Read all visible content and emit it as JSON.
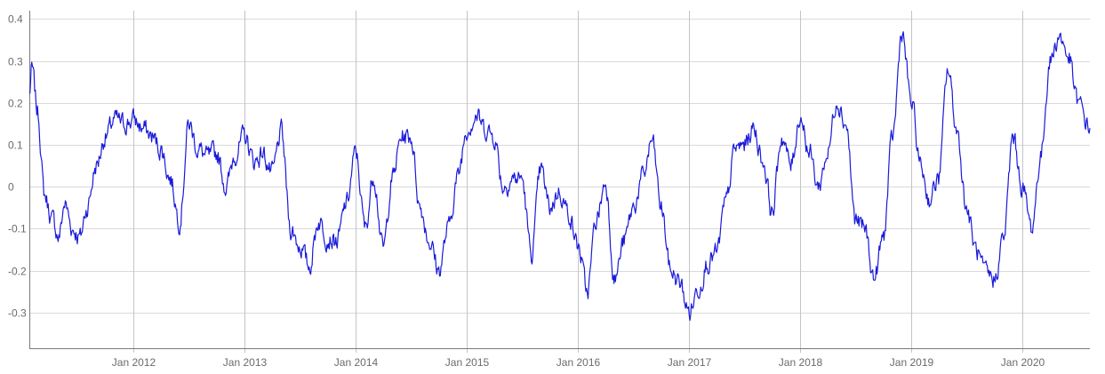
{
  "chart_data": {
    "type": "line",
    "title": "",
    "xlabel": "",
    "ylabel": "",
    "x_range": [
      "2011-01-24",
      "2020-08-10"
    ],
    "ylim": [
      -0.385,
      0.42
    ],
    "y_ticks": [
      {
        "value": 0.4,
        "label": "0.4"
      },
      {
        "value": 0.3,
        "label": "0.3"
      },
      {
        "value": 0.2,
        "label": "0.2"
      },
      {
        "value": 0.1,
        "label": "0.1"
      },
      {
        "value": 0,
        "label": "0"
      },
      {
        "value": -0.1,
        "label": "-0.1"
      },
      {
        "value": -0.2,
        "label": "-0.2"
      },
      {
        "value": -0.3,
        "label": "-0.3"
      }
    ],
    "x_ticks": [
      {
        "value": "2012-01-01",
        "label": "Jan 2012"
      },
      {
        "value": "2013-01-01",
        "label": "Jan 2013"
      },
      {
        "value": "2014-01-01",
        "label": "Jan 2014"
      },
      {
        "value": "2015-01-01",
        "label": "Jan 2015"
      },
      {
        "value": "2016-01-01",
        "label": "Jan 2016"
      },
      {
        "value": "2017-01-01",
        "label": "Jan 2017"
      },
      {
        "value": "2018-01-01",
        "label": "Jan 2018"
      },
      {
        "value": "2019-01-01",
        "label": "Jan 2019"
      },
      {
        "value": "2020-01-01",
        "label": "Jan 2020"
      }
    ],
    "grid": true,
    "legend": "none",
    "series": [
      {
        "color": "#1a1adb",
        "x": [
          "2011-01-24",
          "2011-02-01",
          "2011-02-20",
          "2011-03-15",
          "2011-04-10",
          "2011-05-01",
          "2011-05-20",
          "2011-06-15",
          "2011-07-10",
          "2011-08-01",
          "2011-09-01",
          "2011-10-01",
          "2011-11-01",
          "2011-12-01",
          "2012-01-01",
          "2012-02-01",
          "2012-03-01",
          "2012-04-01",
          "2012-05-01",
          "2012-06-01",
          "2012-07-01",
          "2012-08-01",
          "2012-09-01",
          "2012-10-01",
          "2012-11-01",
          "2012-12-01",
          "2013-01-01",
          "2013-02-01",
          "2013-03-01",
          "2013-04-01",
          "2013-05-01",
          "2013-06-01",
          "2013-07-01",
          "2013-08-01",
          "2013-09-01",
          "2013-10-01",
          "2013-11-01",
          "2013-12-01",
          "2014-01-01",
          "2014-02-01",
          "2014-03-01",
          "2014-04-01",
          "2014-05-01",
          "2014-06-01",
          "2014-07-01",
          "2014-08-01",
          "2014-09-01",
          "2014-10-01",
          "2014-11-01",
          "2014-12-01",
          "2015-01-01",
          "2015-02-01",
          "2015-03-01",
          "2015-04-01",
          "2015-05-01",
          "2015-06-01",
          "2015-07-01",
          "2015-08-01",
          "2015-09-01",
          "2015-10-01",
          "2015-11-01",
          "2015-12-01",
          "2016-01-01",
          "2016-02-01",
          "2016-03-01",
          "2016-04-01",
          "2016-05-01",
          "2016-06-01",
          "2016-07-01",
          "2016-08-01",
          "2016-09-01",
          "2016-10-01",
          "2016-11-01",
          "2016-12-01",
          "2017-01-01",
          "2017-02-01",
          "2017-03-01",
          "2017-04-01",
          "2017-05-01",
          "2017-06-01",
          "2017-07-01",
          "2017-08-01",
          "2017-09-01",
          "2017-10-01",
          "2017-11-01",
          "2017-12-01",
          "2018-01-01",
          "2018-02-01",
          "2018-03-01",
          "2018-04-01",
          "2018-05-01",
          "2018-06-01",
          "2018-07-01",
          "2018-08-01",
          "2018-09-01",
          "2018-10-01",
          "2018-11-01",
          "2018-12-01",
          "2019-01-01",
          "2019-02-01",
          "2019-03-01",
          "2019-04-01",
          "2019-05-01",
          "2019-06-01",
          "2019-07-01",
          "2019-08-01",
          "2019-09-01",
          "2019-10-01",
          "2019-11-01",
          "2019-12-01",
          "2020-01-01",
          "2020-02-01",
          "2020-03-01",
          "2020-04-01",
          "2020-05-01",
          "2020-06-01",
          "2020-07-01",
          "2020-08-10"
        ],
        "values": [
          0.22,
          0.28,
          0.18,
          -0.02,
          -0.08,
          -0.12,
          -0.04,
          -0.1,
          -0.12,
          -0.05,
          0.05,
          0.12,
          0.16,
          0.15,
          0.16,
          0.14,
          0.12,
          0.09,
          0.02,
          -0.08,
          0.15,
          0.09,
          0.07,
          0.08,
          0.0,
          0.08,
          0.12,
          0.06,
          0.08,
          0.03,
          0.13,
          -0.1,
          -0.14,
          -0.19,
          -0.08,
          -0.12,
          -0.13,
          -0.04,
          0.08,
          -0.1,
          0.03,
          -0.15,
          0.02,
          0.12,
          0.12,
          -0.05,
          -0.13,
          -0.2,
          -0.1,
          0.02,
          0.14,
          0.17,
          0.14,
          0.12,
          0.0,
          0.02,
          0.02,
          -0.16,
          0.04,
          -0.05,
          -0.01,
          -0.06,
          -0.14,
          -0.25,
          -0.08,
          0.01,
          -0.22,
          -0.13,
          -0.05,
          0.02,
          0.11,
          -0.05,
          -0.2,
          -0.23,
          -0.3,
          -0.24,
          -0.18,
          -0.16,
          -0.04,
          0.09,
          0.1,
          0.14,
          0.06,
          -0.06,
          0.12,
          0.05,
          0.17,
          0.08,
          0.0,
          0.08,
          0.21,
          0.15,
          -0.08,
          -0.1,
          -0.22,
          -0.12,
          0.12,
          0.37,
          0.2,
          0.05,
          -0.03,
          0.02,
          0.28,
          0.13,
          -0.05,
          -0.15,
          -0.21,
          -0.22,
          -0.12,
          0.12,
          0.0,
          -0.1,
          0.07,
          0.3,
          0.36,
          0.31,
          0.2,
          0.14
        ]
      }
    ]
  }
}
